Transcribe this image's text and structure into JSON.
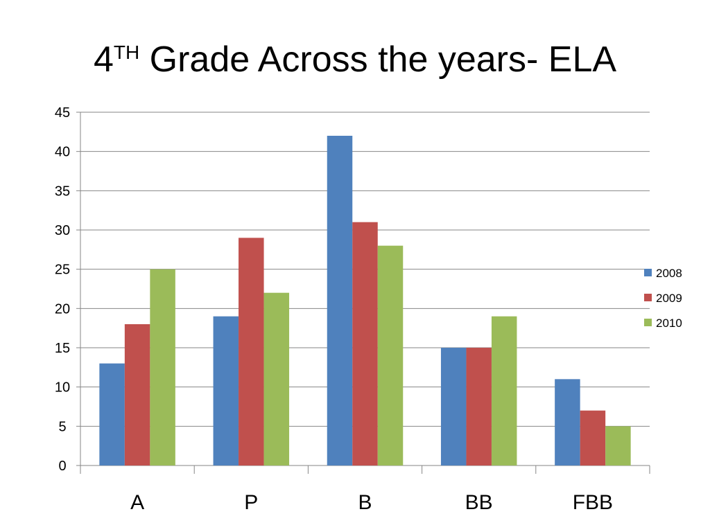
{
  "title": {
    "main": "4",
    "superscript": "TH",
    "rest": "Grade Across the years- ELA"
  },
  "chart_data": {
    "type": "bar",
    "categories": [
      "A",
      "P",
      "B",
      "BB",
      "FBB"
    ],
    "series": [
      {
        "name": "2008",
        "color": "#4f81bd",
        "values": [
          13,
          19,
          42,
          15,
          11
        ]
      },
      {
        "name": "2009",
        "color": "#c0504d",
        "values": [
          18,
          29,
          31,
          15,
          7
        ]
      },
      {
        "name": "2010",
        "color": "#9bbb59",
        "values": [
          25,
          22,
          28,
          19,
          5
        ]
      }
    ],
    "ylim": [
      0,
      45
    ],
    "yticks": [
      0,
      5,
      10,
      15,
      20,
      25,
      30,
      35,
      40,
      45
    ],
    "grid": true,
    "legend": "right"
  }
}
